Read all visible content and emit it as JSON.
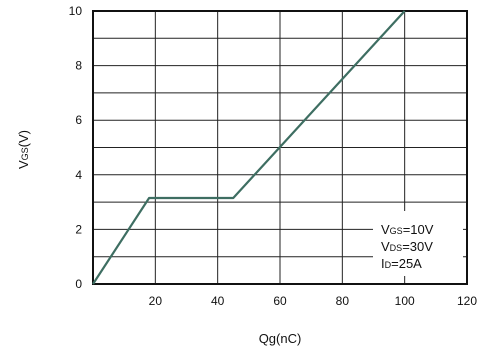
{
  "chart_data": {
    "type": "line",
    "xlabel": {
      "main": "Qg(nC)"
    },
    "ylabel": {
      "main": "V",
      "sub": "GS",
      "suffix": "(V)"
    },
    "xlim": [
      0,
      120
    ],
    "ylim": [
      0,
      10
    ],
    "x_ticks": [
      20,
      40,
      60,
      80,
      100,
      120
    ],
    "y_ticks": [
      0,
      2,
      4,
      6,
      8,
      10
    ],
    "grid": true,
    "minor_y_grid": [
      1,
      3,
      5,
      7,
      9
    ],
    "series": [
      {
        "color": "#3e6e62",
        "x": [
          0,
          18,
          45,
          100
        ],
        "y": [
          0,
          3.15,
          3.15,
          10
        ]
      }
    ],
    "annotations": [
      {
        "main": "V",
        "sub": "GS",
        "suffix": "=10V"
      },
      {
        "main": "V",
        "sub": "DS",
        "suffix": "=30V"
      },
      {
        "main": "I",
        "sub": "D",
        "suffix": "=25A"
      }
    ]
  }
}
